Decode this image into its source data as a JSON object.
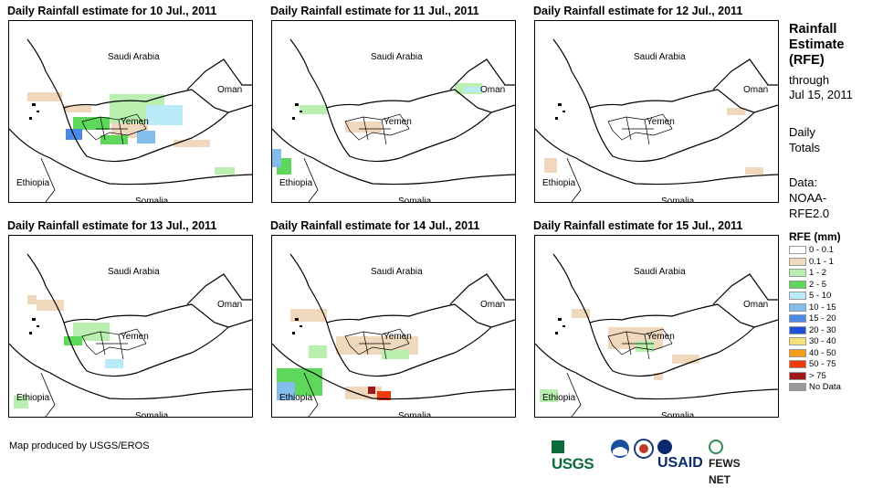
{
  "panels": [
    {
      "title": "Daily Rainfall estimate for 10 Jul., 2011"
    },
    {
      "title": "Daily Rainfall estimate for 11 Jul., 2011"
    },
    {
      "title": "Daily Rainfall estimate for 12 Jul., 2011"
    },
    {
      "title": "Daily Rainfall estimate for 13 Jul., 2011"
    },
    {
      "title": "Daily Rainfall estimate for 14 Jul., 2011"
    },
    {
      "title": "Daily Rainfall estimate for 15 Jul., 2011"
    }
  ],
  "map_labels": {
    "saudi": "Saudi Arabia",
    "oman": "Oman",
    "yemen": "Yemen",
    "ethiopia": "Ethiopia",
    "somalia": "Somalia"
  },
  "sidebar": {
    "title_line1": "Rainfall",
    "title_line2": "Estimate",
    "title_line3": "(RFE)",
    "through": "through",
    "date": "Jul 15, 2011",
    "daily": "Daily",
    "totals": "Totals",
    "data_label": "Data:",
    "data_source1": "NOAA-",
    "data_source2": "RFE2.0"
  },
  "legend": {
    "title": "RFE (mm)",
    "items": [
      {
        "label": "0 - 0.1",
        "color": "#ffffff"
      },
      {
        "label": "0.1 - 1",
        "color": "#f0d8bc"
      },
      {
        "label": "1 - 2",
        "color": "#b9f0b0"
      },
      {
        "label": "2 - 5",
        "color": "#5ed85a"
      },
      {
        "label": "5 - 10",
        "color": "#b8eaf7"
      },
      {
        "label": "10 - 15",
        "color": "#84bcec"
      },
      {
        "label": "15 - 20",
        "color": "#4a8ae6"
      },
      {
        "label": "20 - 30",
        "color": "#1e50d8"
      },
      {
        "label": "30 - 40",
        "color": "#f7e07a"
      },
      {
        "label": "40 - 50",
        "color": "#f59c18"
      },
      {
        "label": "50 - 75",
        "color": "#f03a0a"
      },
      {
        "label": "> 75",
        "color": "#a01818"
      },
      {
        "label": "No Data",
        "color": "#9a9a9a"
      }
    ]
  },
  "credit": "Map produced by USGS/EROS",
  "logos": {
    "usgs": "USGS",
    "usaid": "USAID",
    "fews": "FEWS NET"
  }
}
